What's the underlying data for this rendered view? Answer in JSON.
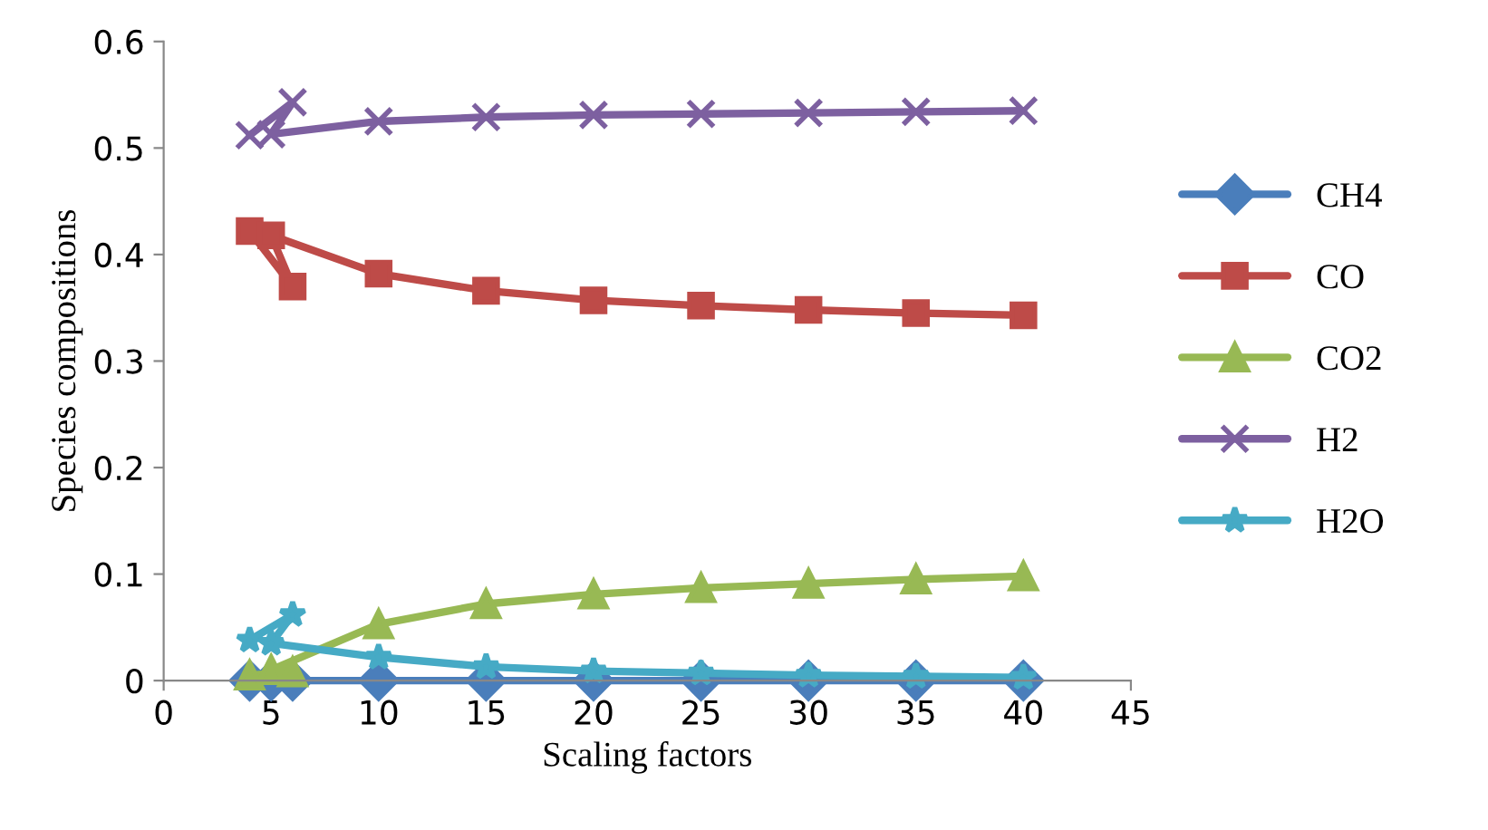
{
  "chart_data": {
    "type": "line",
    "xlabel": "Scaling factors",
    "ylabel": "Species compositions",
    "x": [
      4,
      6,
      5,
      10,
      15,
      20,
      25,
      30,
      35,
      40
    ],
    "xlim": [
      0,
      45
    ],
    "xticks": [
      0,
      5,
      10,
      15,
      20,
      25,
      30,
      35,
      40,
      45
    ],
    "ylim": [
      0,
      0.6
    ],
    "yticks": [
      0,
      0.1,
      0.2,
      0.3,
      0.4,
      0.5,
      0.6
    ],
    "grid": false,
    "legend": "right",
    "line_style": "solid",
    "series": [
      {
        "name": "CH4",
        "color": "#4a7ebb",
        "marker": "diamond",
        "values": [
          0,
          0,
          0,
          0,
          0,
          0,
          0,
          0,
          0,
          0
        ]
      },
      {
        "name": "CO",
        "color": "#be4b48",
        "marker": "square",
        "values": [
          0.422,
          0.37,
          0.418,
          0.382,
          0.366,
          0.357,
          0.352,
          0.348,
          0.345,
          0.343
        ]
      },
      {
        "name": "CO2",
        "color": "#98b954",
        "marker": "triangle",
        "values": [
          0.005,
          0.008,
          0.01,
          0.053,
          0.072,
          0.081,
          0.087,
          0.091,
          0.095,
          0.098
        ]
      },
      {
        "name": "H2",
        "color": "#7d60a0",
        "marker": "cross",
        "values": [
          0.512,
          0.543,
          0.513,
          0.525,
          0.529,
          0.531,
          0.532,
          0.533,
          0.534,
          0.535
        ]
      },
      {
        "name": "H2O",
        "color": "#46aac5",
        "marker": "star",
        "values": [
          0.038,
          0.062,
          0.035,
          0.022,
          0.013,
          0.009,
          0.007,
          0.005,
          0.004,
          0.003
        ]
      }
    ]
  }
}
